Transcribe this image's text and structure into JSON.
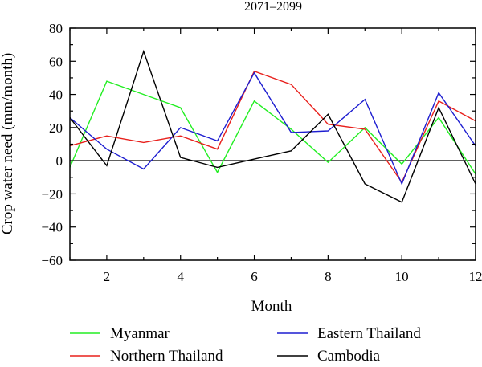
{
  "chart_data": {
    "type": "line",
    "title": "2071–2099",
    "xlabel": "Month",
    "ylabel": "Crop water need (mm/month)",
    "xlim": [
      1,
      12
    ],
    "ylim": [
      -60,
      80
    ],
    "xticks": [
      2,
      4,
      6,
      8,
      10,
      12
    ],
    "yticks": [
      -60,
      -40,
      -20,
      0,
      20,
      40,
      60,
      80
    ],
    "zero_line": true,
    "legend_placement": "bottom",
    "x": [
      1,
      2,
      3,
      4,
      5,
      6,
      7,
      8,
      9,
      10,
      11,
      12
    ],
    "series": [
      {
        "name": "Myanmar",
        "color": "#22ee22",
        "values": [
          -4,
          48,
          40,
          32,
          -7,
          36,
          19,
          -1,
          20,
          -2,
          26,
          -8
        ]
      },
      {
        "name": "Northern Thailand",
        "color": "#e8201c",
        "values": [
          9,
          15,
          11,
          15,
          7,
          54,
          46,
          22,
          19,
          -13,
          36,
          24
        ]
      },
      {
        "name": "Eastern Thailand",
        "color": "#1d1dd0",
        "values": [
          26,
          7,
          -5,
          20,
          12,
          53,
          17,
          18,
          37,
          -14,
          41,
          9
        ]
      },
      {
        "name": "Cambodia",
        "color": "#000000",
        "values": [
          26,
          -3,
          66,
          2,
          -4,
          1,
          6,
          28,
          -14,
          -25,
          32,
          -14
        ]
      }
    ]
  }
}
